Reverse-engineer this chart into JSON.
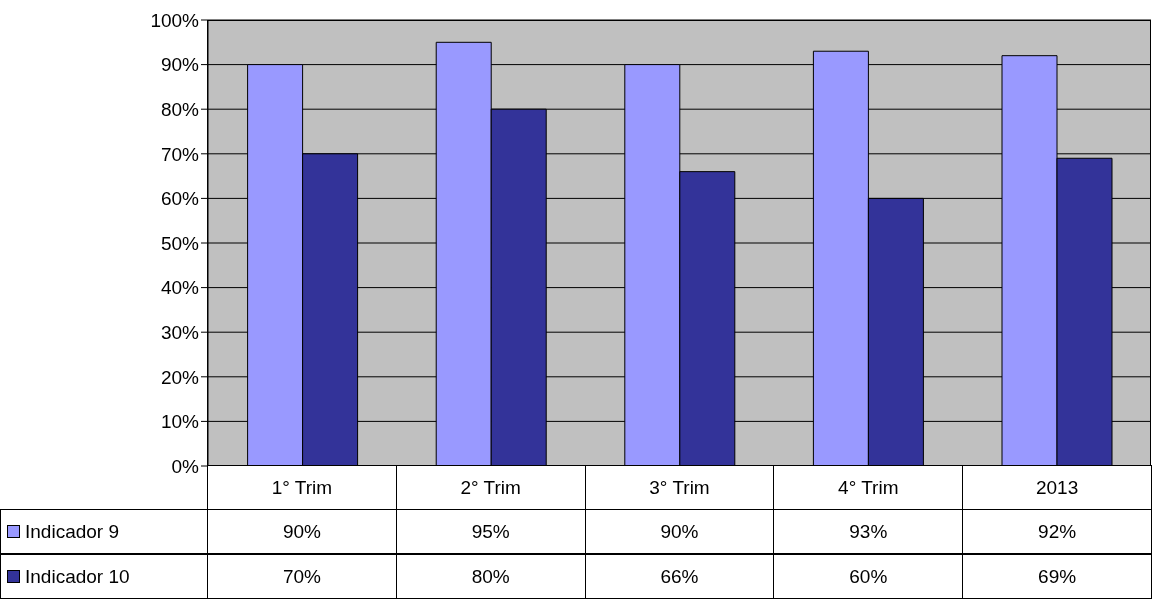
{
  "chart_data": {
    "type": "bar",
    "categories": [
      "1° Trim",
      "2° Trim",
      "3° Trim",
      "4° Trim",
      "2013"
    ],
    "series": [
      {
        "name": "Indicador 9",
        "color": "#9999ff",
        "values": [
          90,
          95,
          90,
          93,
          92
        ],
        "value_labels": [
          "90%",
          "95%",
          "90%",
          "93%",
          "92%"
        ]
      },
      {
        "name": "Indicador 10",
        "color": "#333399",
        "values": [
          70,
          80,
          66,
          60,
          69
        ],
        "value_labels": [
          "70%",
          "80%",
          "66%",
          "60%",
          "69%"
        ]
      }
    ],
    "ylim": [
      0,
      100
    ],
    "yticks": [
      {
        "value": 0,
        "label": "0%"
      },
      {
        "value": 10,
        "label": "10%"
      },
      {
        "value": 20,
        "label": "20%"
      },
      {
        "value": 30,
        "label": "30%"
      },
      {
        "value": 40,
        "label": "40%"
      },
      {
        "value": 50,
        "label": "50%"
      },
      {
        "value": 60,
        "label": "60%"
      },
      {
        "value": 70,
        "label": "70%"
      },
      {
        "value": 80,
        "label": "80%"
      },
      {
        "value": 90,
        "label": "90%"
      },
      {
        "value": 100,
        "label": "100%"
      }
    ],
    "grid": "y",
    "legend": "bottom left"
  }
}
